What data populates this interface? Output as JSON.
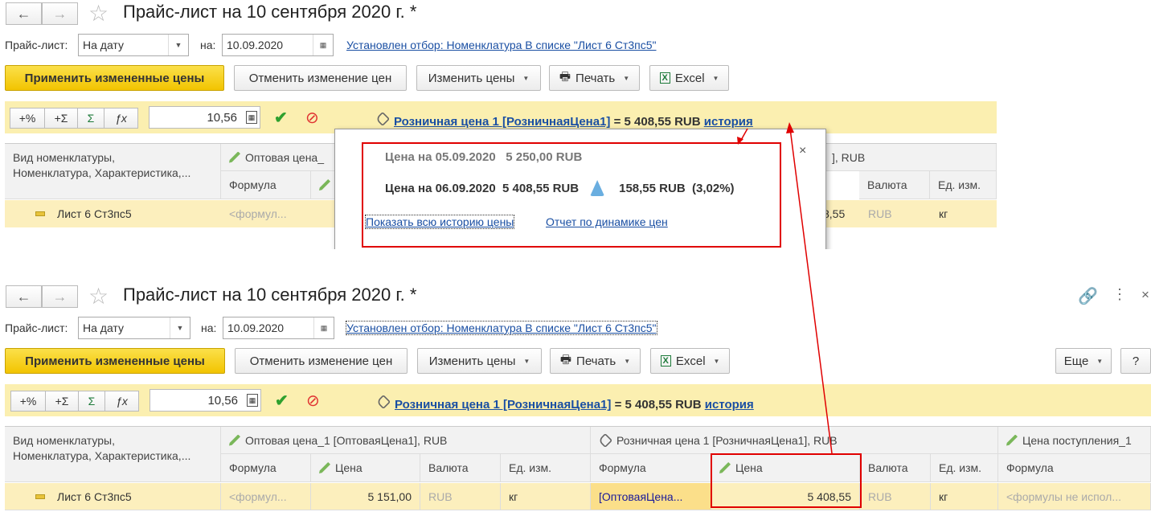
{
  "window": {
    "title": "Прайс-лист на 10 сентября 2020 г. *",
    "price_list_label": "Прайс-лист:",
    "price_list_value": "На дату",
    "date_label": "на:",
    "date_value": "10.09.2020",
    "filter_link": "Установлен отбор: Номенклатура В списке \"Лист 6 Ст3пс5\""
  },
  "toolbar": {
    "apply": "Применить измененные цены",
    "cancel": "Отменить изменение цен",
    "change": "Изменить цены",
    "print": "Печать",
    "excel": "Excel",
    "more": "Еще",
    "help": "?"
  },
  "editbar": {
    "plus_percent": "+%",
    "plus_sum": "+Σ",
    "sum": "Σ",
    "fx": "ƒx",
    "value": "10,56",
    "price_link": "Розничная цена 1 [РозничнаяЦена1]",
    "price_eq": "= 5 408,55 RUB",
    "history_link": "история"
  },
  "table": {
    "col_first": "Вид номенклатуры,\nНоменклатура, Характеристика,...",
    "group1": "Оптовая цена_1 [ОптоваяЦена1], RUB",
    "group1_short": "Оптовая цена_",
    "group2": "Розничная цена 1 [РозничнаяЦена1], RUB",
    "group2_tail": "], RUB",
    "group3": "Цена поступления_1",
    "sub": {
      "formula": "Формула",
      "price": "Цена",
      "currency": "Валюта",
      "unit": "Ед. изм."
    },
    "row": {
      "name": "Лист 6 Ст3пс5",
      "g1_formula": "<формул...",
      "g1_price": "5 151,00",
      "g1_currency": "RUB",
      "g1_unit": "кг",
      "g2_formula": "[ОптоваяЦена...",
      "g2_price": "5 408,55",
      "g2_price_partial": "8,55",
      "g2_currency": "RUB",
      "g2_unit": "кг",
      "g3_formula": "<формулы не испол..."
    }
  },
  "popup": {
    "line1_label": "Цена на 05.09.2020",
    "line1_value": "5 250,00 RUB",
    "line2_label": "Цена на 06.09.2020",
    "line2_value": "5 408,55 RUB",
    "change": "158,55 RUB",
    "change_pct": "(3,02%)",
    "show_all": "Показать всю историю цены",
    "report": "Отчет по динамике цен",
    "close": "×"
  },
  "colors": {
    "accent_yellow": "#f2c400",
    "bar": "#fbefb0",
    "row": "#fcefbd",
    "annotation": "#e00000",
    "link": "#1a4fa3"
  }
}
